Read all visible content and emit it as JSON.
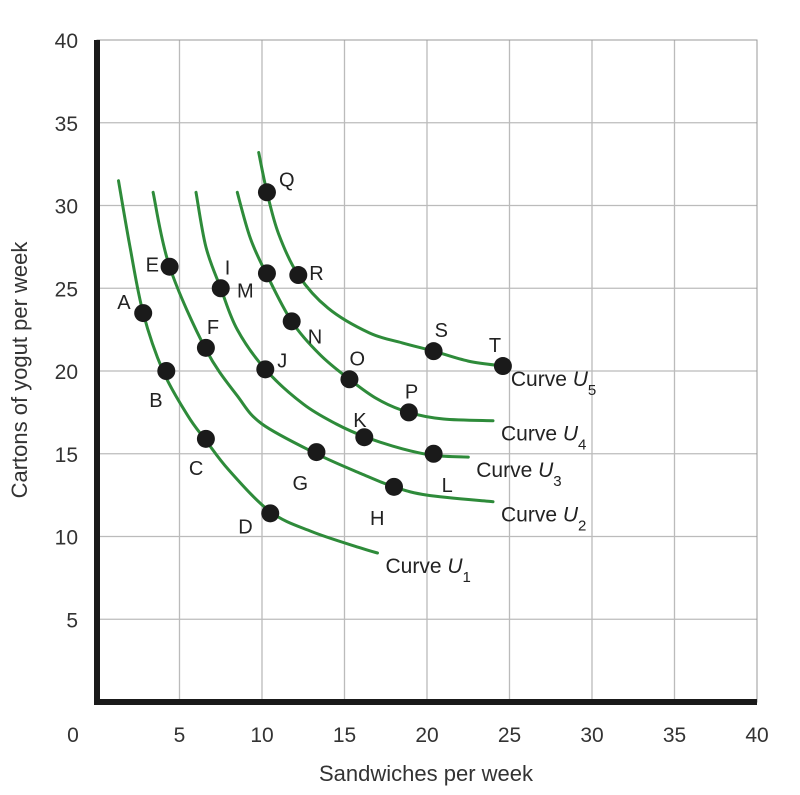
{
  "chart_data": {
    "type": "line",
    "xlabel": "Sandwiches per week",
    "ylabel": "Cartons of yogut per week",
    "xlim": [
      0,
      40
    ],
    "ylim": [
      0,
      40
    ],
    "x_ticks": [
      "0",
      "5",
      "10",
      "15",
      "20",
      "25",
      "30",
      "35",
      "40"
    ],
    "y_ticks": [
      "5",
      "10",
      "15",
      "20",
      "25",
      "30",
      "35",
      "40"
    ],
    "grid": true,
    "colors": {
      "curve": "#2e8b3a",
      "point": "#1a1a1a",
      "grid": "#bbbbbb",
      "frame": "#1a1a1a"
    },
    "series": [
      {
        "name": "Curve U",
        "subscript": "1",
        "x": [
          1.3,
          2.0,
          2.8,
          4.0,
          5.5,
          6.6,
          8.0,
          10.5,
          13.0,
          16.0,
          17.0
        ],
        "y": [
          31.5,
          27.5,
          23.5,
          20.0,
          17.3,
          15.8,
          14.0,
          11.5,
          10.3,
          9.3,
          9.0
        ]
      },
      {
        "name": "Curve U",
        "subscript": "2",
        "x": [
          3.4,
          4.4,
          6.6,
          8.5,
          10.0,
          13.3,
          16.0,
          18.0,
          20.0,
          24.0
        ],
        "y": [
          30.8,
          26.3,
          21.3,
          18.5,
          16.8,
          15.0,
          13.8,
          13.0,
          12.5,
          12.1
        ]
      },
      {
        "name": "Curve U",
        "subscript": "3",
        "x": [
          6.0,
          6.6,
          7.5,
          8.5,
          10.2,
          12.5,
          14.5,
          16.3,
          18.5,
          20.4,
          22.5
        ],
        "y": [
          30.8,
          27.5,
          25.0,
          22.5,
          20.1,
          18.0,
          16.8,
          16.0,
          15.3,
          14.9,
          14.8
        ]
      },
      {
        "name": "Curve U",
        "subscript": "4",
        "x": [
          8.5,
          9.3,
          10.3,
          11.8,
          13.5,
          15.3,
          17.0,
          18.9,
          21.0,
          24.0
        ],
        "y": [
          30.8,
          28.0,
          25.8,
          23.0,
          21.0,
          19.5,
          18.3,
          17.5,
          17.1,
          17.0
        ]
      },
      {
        "name": "Curve U",
        "subscript": "5",
        "x": [
          9.8,
          10.3,
          11.0,
          12.2,
          14.0,
          16.5,
          18.5,
          20.4,
          22.5,
          24.6
        ],
        "y": [
          33.2,
          30.8,
          28.3,
          25.8,
          23.8,
          22.3,
          21.7,
          21.2,
          20.6,
          20.3
        ]
      }
    ],
    "points": [
      {
        "label": "A",
        "x": 2.8,
        "y": 23.5
      },
      {
        "label": "B",
        "x": 4.2,
        "y": 20.0
      },
      {
        "label": "C",
        "x": 6.6,
        "y": 15.9
      },
      {
        "label": "D",
        "x": 10.5,
        "y": 11.4
      },
      {
        "label": "E",
        "x": 4.4,
        "y": 26.3
      },
      {
        "label": "F",
        "x": 6.6,
        "y": 21.4
      },
      {
        "label": "G",
        "x": 13.3,
        "y": 15.1
      },
      {
        "label": "H",
        "x": 18.0,
        "y": 13.0
      },
      {
        "label": "I",
        "x": 7.5,
        "y": 25.0
      },
      {
        "label": "J",
        "x": 10.2,
        "y": 20.1
      },
      {
        "label": "K",
        "x": 16.2,
        "y": 16.0
      },
      {
        "label": "L",
        "x": 20.4,
        "y": 15.0
      },
      {
        "label": "M",
        "x": 10.3,
        "y": 25.9
      },
      {
        "label": "N",
        "x": 11.8,
        "y": 23.0
      },
      {
        "label": "O",
        "x": 15.3,
        "y": 19.5
      },
      {
        "label": "P",
        "x": 18.9,
        "y": 17.5
      },
      {
        "label": "Q",
        "x": 10.3,
        "y": 30.8
      },
      {
        "label": "R",
        "x": 12.2,
        "y": 25.8
      },
      {
        "label": "S",
        "x": 20.4,
        "y": 21.2
      },
      {
        "label": "T",
        "x": 24.6,
        "y": 20.3
      }
    ]
  }
}
